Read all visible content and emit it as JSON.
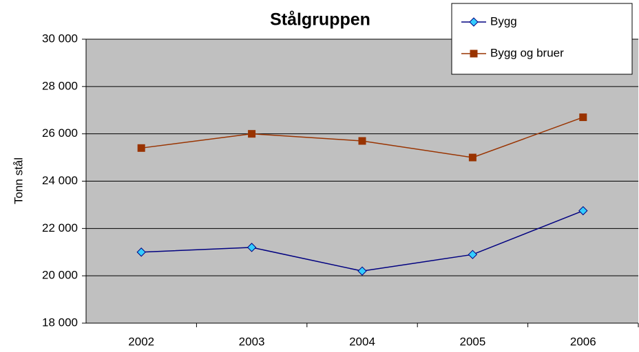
{
  "chart_data": {
    "type": "line",
    "title": "Stålgruppen",
    "y_label": "Tonn stål",
    "categories": [
      "2002",
      "2003",
      "2004",
      "2005",
      "2006"
    ],
    "series": [
      {
        "name": "Bygg",
        "color": "#000080",
        "marker_color": "#33ccff",
        "marker": "diamond",
        "values": [
          21000,
          21200,
          20200,
          20900,
          22750
        ]
      },
      {
        "name": "Bygg og bruer",
        "color": "#993300",
        "marker_color": "#993300",
        "marker": "square",
        "values": [
          25400,
          26000,
          25700,
          25000,
          26700
        ]
      }
    ],
    "ylim": [
      18000,
      30000
    ],
    "yticks": [
      {
        "value": 18000,
        "label": "18 000"
      },
      {
        "value": 20000,
        "label": "20 000"
      },
      {
        "value": 22000,
        "label": "22 000"
      },
      {
        "value": 24000,
        "label": "24 000"
      },
      {
        "value": 26000,
        "label": "26 000"
      },
      {
        "value": 28000,
        "label": "28 000"
      },
      {
        "value": 30000,
        "label": "30 000"
      }
    ],
    "grid": true,
    "legend": "top-right"
  }
}
